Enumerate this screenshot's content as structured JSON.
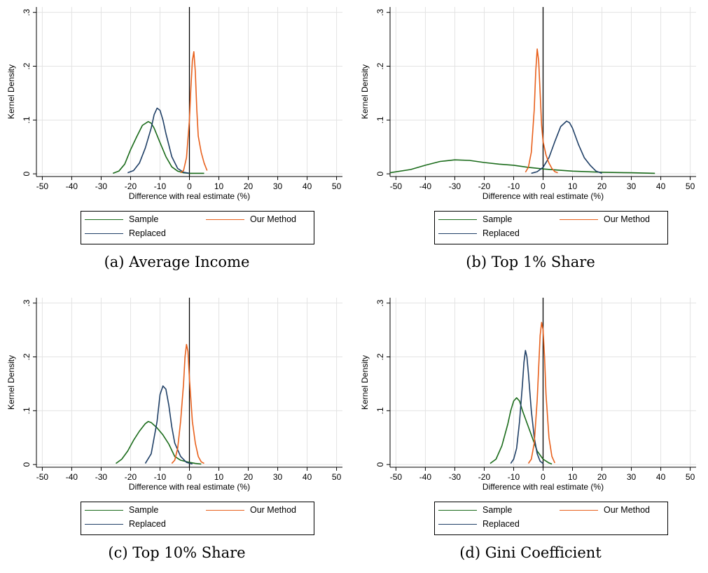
{
  "colors": {
    "sample": "#1a6b1a",
    "replaced": "#1f3f66",
    "our_method": "#e8601c",
    "grid": "#e3e3e3",
    "zero_line": "#000000"
  },
  "chart_data": [
    {
      "type": "line",
      "caption": "(a) Average Income",
      "xlabel": "Difference with real estimate (%)",
      "ylabel": "Kernel Density",
      "xlim": [
        -52,
        52
      ],
      "ylim": [
        -0.005,
        0.31
      ],
      "xticks": [
        -50,
        -40,
        -30,
        -20,
        -10,
        0,
        10,
        20,
        30,
        40,
        50
      ],
      "xtick_labels": [
        "-50",
        "-40",
        "-30",
        "-20",
        "-10",
        "0",
        "10",
        "20",
        "30",
        "40",
        "50"
      ],
      "yticks": [
        0,
        0.1,
        0.2,
        0.3
      ],
      "ytick_labels": [
        "0",
        ".1",
        ".2",
        ".3"
      ],
      "grid": true,
      "legend": "below",
      "legend_labels": [
        "Sample",
        "Our Method",
        "Replaced"
      ],
      "series": [
        {
          "key": "sample",
          "x": [
            -26,
            -24,
            -22,
            -20,
            -18,
            -16,
            -14,
            -13,
            -12,
            -10,
            -8,
            -6,
            -4,
            -2,
            0,
            2,
            5
          ],
          "y": [
            0.001,
            0.005,
            0.018,
            0.045,
            0.068,
            0.09,
            0.097,
            0.094,
            0.085,
            0.058,
            0.032,
            0.013,
            0.005,
            0.002,
            0.001,
            0.001,
            0.001
          ]
        },
        {
          "key": "replaced",
          "x": [
            -21,
            -19,
            -17,
            -15,
            -13,
            -12,
            -11,
            -10,
            -9,
            -8,
            -6,
            -4,
            -2,
            0
          ],
          "y": [
            0.002,
            0.006,
            0.02,
            0.048,
            0.085,
            0.11,
            0.122,
            0.118,
            0.1,
            0.075,
            0.032,
            0.01,
            0.003,
            0.001
          ]
        },
        {
          "key": "our_method",
          "x": [
            -3,
            -2,
            -1,
            0,
            0.5,
            1,
            1.5,
            2,
            2.5,
            3,
            4,
            5,
            6
          ],
          "y": [
            0.002,
            0.006,
            0.03,
            0.1,
            0.16,
            0.21,
            0.227,
            0.19,
            0.12,
            0.07,
            0.04,
            0.02,
            0.006
          ]
        }
      ]
    },
    {
      "type": "line",
      "caption": "(b) Top 1% Share",
      "xlabel": "Difference with real estimate (%)",
      "ylabel": "Kernel Density",
      "xlim": [
        -52,
        52
      ],
      "ylim": [
        -0.005,
        0.31
      ],
      "xticks": [
        -50,
        -40,
        -30,
        -20,
        -10,
        0,
        10,
        20,
        30,
        40,
        50
      ],
      "xtick_labels": [
        "-50",
        "-40",
        "-30",
        "-20",
        "-10",
        "0",
        "10",
        "20",
        "30",
        "40",
        "50"
      ],
      "yticks": [
        0,
        0.1,
        0.2,
        0.3
      ],
      "ytick_labels": [
        "0",
        ".1",
        ".2",
        ".3"
      ],
      "grid": true,
      "legend": "below",
      "legend_labels": [
        "Sample",
        "Our Method",
        "Replaced"
      ],
      "series": [
        {
          "key": "sample",
          "x": [
            -52,
            -45,
            -40,
            -35,
            -30,
            -25,
            -20,
            -15,
            -10,
            -5,
            0,
            5,
            10,
            20,
            30,
            38
          ],
          "y": [
            0.002,
            0.008,
            0.016,
            0.023,
            0.026,
            0.025,
            0.021,
            0.018,
            0.016,
            0.012,
            0.009,
            0.007,
            0.005,
            0.003,
            0.002,
            0.001
          ]
        },
        {
          "key": "replaced",
          "x": [
            -4,
            -2,
            0,
            2,
            4,
            6,
            8,
            9,
            10,
            12,
            14,
            16,
            18,
            20
          ],
          "y": [
            0.001,
            0.004,
            0.012,
            0.03,
            0.06,
            0.088,
            0.098,
            0.095,
            0.085,
            0.055,
            0.03,
            0.016,
            0.005,
            0.001
          ]
        },
        {
          "key": "our_method",
          "x": [
            -6,
            -5,
            -4,
            -3,
            -2.5,
            -2,
            -1.5,
            -1,
            -0.5,
            0,
            1,
            2,
            3,
            4,
            5
          ],
          "y": [
            0.003,
            0.012,
            0.04,
            0.12,
            0.19,
            0.232,
            0.21,
            0.15,
            0.09,
            0.06,
            0.035,
            0.02,
            0.01,
            0.004,
            0.002
          ]
        }
      ]
    },
    {
      "type": "line",
      "caption": "(c) Top 10% Share",
      "xlabel": "Difference with real estimate (%)",
      "ylabel": "Kernel Density",
      "xlim": [
        -52,
        52
      ],
      "ylim": [
        -0.005,
        0.31
      ],
      "xticks": [
        -50,
        -40,
        -30,
        -20,
        -10,
        0,
        10,
        20,
        30,
        40,
        50
      ],
      "xtick_labels": [
        "-50",
        "-40",
        "-30",
        "-20",
        "-10",
        "0",
        "10",
        "20",
        "30",
        "40",
        "50"
      ],
      "yticks": [
        0,
        0.1,
        0.2,
        0.3
      ],
      "ytick_labels": [
        "0",
        ".1",
        ".2",
        ".3"
      ],
      "grid": true,
      "legend": "below",
      "legend_labels": [
        "Sample",
        "Our Method",
        "Replaced"
      ],
      "series": [
        {
          "key": "sample",
          "x": [
            -25,
            -23,
            -21,
            -19,
            -17,
            -15,
            -14,
            -13,
            -11,
            -9,
            -7,
            -5,
            -3,
            0,
            2,
            4
          ],
          "y": [
            0.002,
            0.01,
            0.025,
            0.045,
            0.062,
            0.076,
            0.08,
            0.078,
            0.068,
            0.055,
            0.038,
            0.015,
            0.008,
            0.004,
            0.002,
            0.001
          ]
        },
        {
          "key": "replaced",
          "x": [
            -15,
            -13,
            -11,
            -10,
            -9,
            -8,
            -7,
            -6,
            -5,
            -3,
            -1,
            1
          ],
          "y": [
            0.002,
            0.02,
            0.08,
            0.13,
            0.146,
            0.14,
            0.11,
            0.07,
            0.04,
            0.015,
            0.004,
            0.001
          ]
        },
        {
          "key": "our_method",
          "x": [
            -6,
            -5,
            -4,
            -3,
            -2,
            -1.5,
            -1,
            -0.5,
            0,
            1,
            2,
            3,
            4,
            5
          ],
          "y": [
            0.002,
            0.008,
            0.03,
            0.08,
            0.15,
            0.2,
            0.223,
            0.21,
            0.16,
            0.08,
            0.04,
            0.015,
            0.005,
            0.002
          ]
        }
      ]
    },
    {
      "type": "line",
      "caption": "(d) Gini Coefficient",
      "xlabel": "Difference with real estimate (%)",
      "ylabel": "Kernel Density",
      "xlim": [
        -52,
        52
      ],
      "ylim": [
        -0.005,
        0.31
      ],
      "xticks": [
        -50,
        -40,
        -30,
        -20,
        -10,
        0,
        10,
        20,
        30,
        40,
        50
      ],
      "xtick_labels": [
        "-50",
        "-40",
        "-30",
        "-20",
        "-10",
        "0",
        "10",
        "20",
        "30",
        "40",
        "50"
      ],
      "yticks": [
        0,
        0.1,
        0.2,
        0.3
      ],
      "ytick_labels": [
        "0",
        ".1",
        ".2",
        ".3"
      ],
      "grid": true,
      "legend": "below",
      "legend_labels": [
        "Sample",
        "Our Method",
        "Replaced"
      ],
      "series": [
        {
          "key": "sample",
          "x": [
            -18,
            -16,
            -14,
            -12,
            -11,
            -10,
            -9,
            -8,
            -7,
            -6,
            -4,
            -2,
            0,
            2,
            3
          ],
          "y": [
            0.002,
            0.01,
            0.035,
            0.075,
            0.1,
            0.118,
            0.124,
            0.118,
            0.1,
            0.085,
            0.055,
            0.025,
            0.01,
            0.003,
            0.001
          ]
        },
        {
          "key": "replaced",
          "x": [
            -11,
            -10,
            -9,
            -8,
            -7,
            -6.5,
            -6,
            -5.5,
            -5,
            -4,
            -3,
            -2,
            -1,
            0
          ],
          "y": [
            0.002,
            0.01,
            0.03,
            0.08,
            0.15,
            0.19,
            0.212,
            0.2,
            0.17,
            0.1,
            0.05,
            0.02,
            0.006,
            0.002
          ]
        },
        {
          "key": "our_method",
          "x": [
            -5,
            -4,
            -3,
            -2,
            -1.5,
            -1,
            -0.5,
            0,
            0.5,
            1,
            2,
            3,
            4
          ],
          "y": [
            0.002,
            0.01,
            0.04,
            0.12,
            0.18,
            0.24,
            0.264,
            0.25,
            0.2,
            0.13,
            0.05,
            0.015,
            0.003
          ]
        }
      ]
    }
  ]
}
